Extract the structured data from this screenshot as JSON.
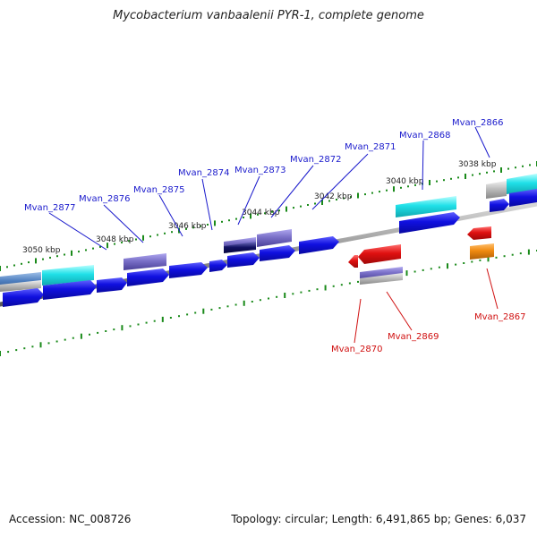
{
  "title": "Mycobacterium vanbaalenii PYR-1, complete genome",
  "footer": {
    "accession": "Accession: NC_008726",
    "summary": "Topology: circular; Length: 6,491,865 bp; Genes: 6,037"
  },
  "ticks": [
    "3038 kbp",
    "3040 kbp",
    "3042 kbp",
    "3044 kbp",
    "3046 kbp",
    "3048 kbp",
    "3050 kbp"
  ],
  "genes_forward": [
    "Mvan_2866",
    "Mvan_2868",
    "Mvan_2871",
    "Mvan_2872",
    "Mvan_2873",
    "Mvan_2874",
    "Mvan_2875",
    "Mvan_2876",
    "Mvan_2877"
  ],
  "genes_reverse": [
    "Mvan_2867",
    "Mvan_2869",
    "Mvan_2870"
  ],
  "colors": {
    "forward_cds": "#1010e0",
    "reverse_cds": "#e01010",
    "cyan_feature": "#20e0e8",
    "purple_feature": "#7a70c8",
    "orange_feature": "#f08a10",
    "backbone": "#888888",
    "tick": "#1a8a1a"
  }
}
